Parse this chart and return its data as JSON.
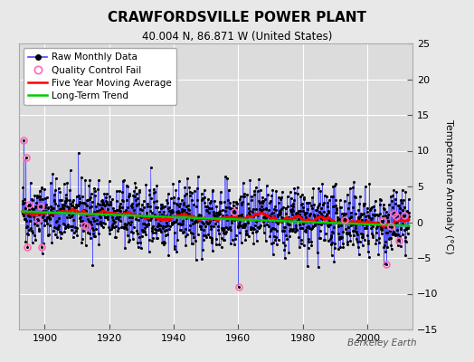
{
  "title": "CRAWFORDSVILLE POWER PLANT",
  "subtitle": "40.004 N, 86.871 W (United States)",
  "ylabel": "Temperature Anomaly (°C)",
  "watermark": "Berkeley Earth",
  "start_year": 1893,
  "end_year": 2013,
  "ylim": [
    -15,
    25
  ],
  "yticks": [
    -15,
    -10,
    -5,
    0,
    5,
    10,
    15,
    20,
    25
  ],
  "xticks": [
    1900,
    1920,
    1940,
    1960,
    1980,
    2000
  ],
  "bg_color": "#e8e8e8",
  "plot_bg_color": "#dcdcdc",
  "grid_color": "#ffffff",
  "raw_line_color": "#4444ff",
  "raw_dot_color": "#000000",
  "qc_fail_color": "#ff69b4",
  "moving_avg_color": "#ff0000",
  "trend_color": "#00cc00",
  "seed": 42
}
